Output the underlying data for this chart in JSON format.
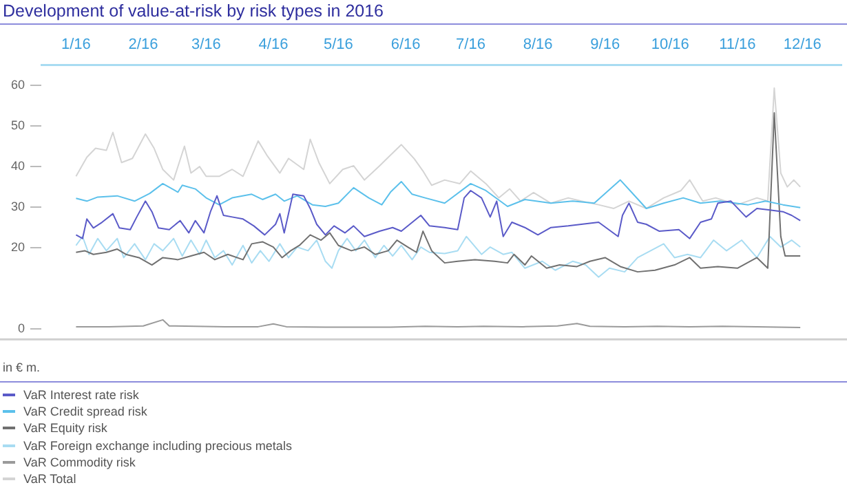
{
  "chart_data": {
    "type": "line",
    "title": "Development of value-at-risk by risk types in 2016",
    "annotations": [
      "in € m."
    ],
    "xlim": [
      "2015-12-16",
      "2016-12-19"
    ],
    "xticks": [
      {
        "value": "2016-01-01",
        "label": "1/16"
      },
      {
        "value": "2016-02-01",
        "label": "2/16"
      },
      {
        "value": "2016-03-01",
        "label": "3/16"
      },
      {
        "value": "2016-04-01",
        "label": "4/16"
      },
      {
        "value": "2016-05-01",
        "label": "5/16"
      },
      {
        "value": "2016-06-01",
        "label": "6/16"
      },
      {
        "value": "2016-07-01",
        "label": "7/16"
      },
      {
        "value": "2016-08-01",
        "label": "8/16"
      },
      {
        "value": "2016-09-01",
        "label": "9/16"
      },
      {
        "value": "2016-10-01",
        "label": "10/16"
      },
      {
        "value": "2016-11-01",
        "label": "11/16"
      },
      {
        "value": "2016-12-01",
        "label": "12/16"
      }
    ],
    "ylim": [
      -2.5,
      65
    ],
    "yticks": [
      0,
      20,
      30,
      40,
      50,
      60
    ],
    "grid": false,
    "legend": "bottom",
    "marker": "none",
    "line_style": "solid",
    "series": [
      {
        "name": "VaR Interest rate risk",
        "color": "#5a5ac8",
        "x": [
          "2016-01-01",
          "2016-01-04",
          "2016-01-06",
          "2016-01-09",
          "2016-01-13",
          "2016-01-18",
          "2016-01-21",
          "2016-01-26",
          "2016-01-29",
          "2016-02-02",
          "2016-02-05",
          "2016-02-08",
          "2016-02-13",
          "2016-02-18",
          "2016-02-22",
          "2016-02-25",
          "2016-02-29",
          "2016-03-03",
          "2016-03-06",
          "2016-03-09",
          "2016-03-13",
          "2016-03-18",
          "2016-03-23",
          "2016-03-28",
          "2016-04-02",
          "2016-04-04",
          "2016-04-06",
          "2016-04-10",
          "2016-04-15",
          "2016-04-18",
          "2016-04-21",
          "2016-04-25",
          "2016-04-29",
          "2016-05-04",
          "2016-05-08",
          "2016-05-13",
          "2016-05-20",
          "2016-05-26",
          "2016-05-30",
          "2016-06-08",
          "2016-06-12",
          "2016-06-19",
          "2016-06-25",
          "2016-06-28",
          "2016-07-01",
          "2016-07-06",
          "2016-07-10",
          "2016-07-13",
          "2016-07-16",
          "2016-07-20",
          "2016-07-26",
          "2016-08-01",
          "2016-08-07",
          "2016-08-15",
          "2016-08-21",
          "2016-08-29",
          "2016-09-07",
          "2016-09-09",
          "2016-09-12",
          "2016-09-16",
          "2016-09-20",
          "2016-09-26",
          "2016-10-05",
          "2016-10-10",
          "2016-10-15",
          "2016-10-20",
          "2016-10-23",
          "2016-10-29",
          "2016-11-05",
          "2016-11-10",
          "2016-11-16",
          "2016-11-22",
          "2016-11-26",
          "2016-11-30"
        ],
        "values": [
          23.2,
          22.3,
          27.1,
          24.9,
          26.3,
          28.4,
          24.9,
          24.5,
          27.6,
          31.5,
          28.9,
          24.9,
          24.5,
          26.7,
          23.7,
          26.7,
          23.7,
          28.9,
          32.8,
          28,
          27.6,
          27.1,
          25.4,
          23.2,
          25.8,
          28.4,
          23.7,
          33.2,
          32.8,
          29.7,
          25.8,
          23.2,
          25.4,
          23.7,
          25.4,
          22.8,
          24.1,
          25,
          24.1,
          28,
          25.4,
          25,
          24.5,
          32.3,
          34.1,
          32.3,
          27.6,
          31.5,
          22.8,
          26.3,
          25,
          23.2,
          25,
          25.4,
          25.8,
          26.3,
          22.8,
          28,
          31,
          26.3,
          25.8,
          24.1,
          24.5,
          22.3,
          26.3,
          27.1,
          31,
          31.5,
          27.6,
          29.7,
          29.3,
          28.9,
          28,
          26.7
        ]
      },
      {
        "name": "VaR Credit spread risk",
        "color": "#5bc0eb",
        "x": [
          "2016-01-01",
          "2016-01-06",
          "2016-01-11",
          "2016-01-20",
          "2016-01-28",
          "2016-02-04",
          "2016-02-10",
          "2016-02-17",
          "2016-02-19",
          "2016-02-25",
          "2016-03-01",
          "2016-03-07",
          "2016-03-13",
          "2016-03-22",
          "2016-03-27",
          "2016-04-02",
          "2016-04-06",
          "2016-04-12",
          "2016-04-19",
          "2016-04-25",
          "2016-05-01",
          "2016-05-08",
          "2016-05-15",
          "2016-05-21",
          "2016-05-25",
          "2016-05-30",
          "2016-06-04",
          "2016-06-10",
          "2016-06-19",
          "2016-07-01",
          "2016-07-08",
          "2016-07-18",
          "2016-07-26",
          "2016-08-07",
          "2016-08-17",
          "2016-08-27",
          "2016-09-08",
          "2016-09-14",
          "2016-09-20",
          "2016-09-28",
          "2016-10-07",
          "2016-10-15",
          "2016-10-24",
          "2016-11-06",
          "2016-11-14",
          "2016-11-22",
          "2016-11-30"
        ],
        "values": [
          32.2,
          31.5,
          32.5,
          32.8,
          31.5,
          33.4,
          35.8,
          33.7,
          35.4,
          34.5,
          32.3,
          30.6,
          32.3,
          33.2,
          31.9,
          33.2,
          31.5,
          32.8,
          30.6,
          30.2,
          31,
          34.8,
          32.3,
          30.6,
          33.7,
          36.3,
          33.2,
          32.3,
          31,
          35.8,
          34.1,
          30.2,
          31.9,
          31,
          31.5,
          31,
          36.7,
          33.2,
          29.7,
          31,
          32.3,
          31,
          31.5,
          30.6,
          31.5,
          30.6,
          29.9
        ]
      },
      {
        "name": "VaR Equity risk",
        "color": "#707070",
        "x": [
          "2016-01-01",
          "2016-01-05",
          "2016-01-09",
          "2016-01-15",
          "2016-01-20",
          "2016-01-24",
          "2016-01-30",
          "2016-02-05",
          "2016-02-10",
          "2016-02-17",
          "2016-02-23",
          "2016-02-29",
          "2016-03-05",
          "2016-03-11",
          "2016-03-18",
          "2016-03-22",
          "2016-03-27",
          "2016-04-01",
          "2016-04-05",
          "2016-04-09",
          "2016-04-13",
          "2016-04-18",
          "2016-04-23",
          "2016-04-27",
          "2016-05-01",
          "2016-05-07",
          "2016-05-13",
          "2016-05-18",
          "2016-05-24",
          "2016-05-28",
          "2016-06-02",
          "2016-06-06",
          "2016-06-09",
          "2016-06-13",
          "2016-06-19",
          "2016-06-25",
          "2016-07-03",
          "2016-07-12",
          "2016-07-18",
          "2016-07-21",
          "2016-07-26",
          "2016-07-29",
          "2016-08-05",
          "2016-08-11",
          "2016-08-19",
          "2016-08-25",
          "2016-09-01",
          "2016-09-08",
          "2016-09-16",
          "2016-09-24",
          "2016-10-03",
          "2016-10-10",
          "2016-10-15",
          "2016-10-23",
          "2016-11-01",
          "2016-11-10",
          "2016-11-15",
          "2016-11-18",
          "2016-11-21",
          "2016-11-23",
          "2016-11-27",
          "2016-11-30"
        ],
        "values": [
          18.9,
          19.3,
          18.4,
          18.9,
          19.7,
          18.4,
          17.6,
          15.8,
          17.6,
          17.1,
          18,
          18.9,
          17.1,
          18.4,
          17.1,
          21,
          21.5,
          20.2,
          17.6,
          19.3,
          20.6,
          23.2,
          21.9,
          23.7,
          20.6,
          19.3,
          20.2,
          18.4,
          19.3,
          21.9,
          20.2,
          18.9,
          24.1,
          19.3,
          16.3,
          16.7,
          17.1,
          16.7,
          16.3,
          18.4,
          15.8,
          18,
          15,
          15.8,
          15.4,
          16.7,
          17.6,
          15.4,
          14.1,
          14.5,
          15.8,
          17.6,
          15,
          15.4,
          15,
          17.6,
          15,
          53.2,
          22.8,
          18,
          18,
          18
        ]
      },
      {
        "name": "VaR Foreign exchange including precious metals",
        "color": "#a8dcf2",
        "x": [
          "2016-01-01",
          "2016-01-04",
          "2016-01-07",
          "2016-01-11",
          "2016-01-15",
          "2016-01-20",
          "2016-01-23",
          "2016-01-28",
          "2016-02-02",
          "2016-02-06",
          "2016-02-10",
          "2016-02-15",
          "2016-02-19",
          "2016-02-23",
          "2016-02-27",
          "2016-03-01",
          "2016-03-05",
          "2016-03-09",
          "2016-03-13",
          "2016-03-18",
          "2016-03-22",
          "2016-03-26",
          "2016-03-30",
          "2016-04-04",
          "2016-04-08",
          "2016-04-12",
          "2016-04-17",
          "2016-04-21",
          "2016-04-25",
          "2016-04-28",
          "2016-05-01",
          "2016-05-05",
          "2016-05-09",
          "2016-05-13",
          "2016-05-18",
          "2016-05-22",
          "2016-05-26",
          "2016-05-30",
          "2016-06-04",
          "2016-06-08",
          "2016-06-12",
          "2016-06-19",
          "2016-06-25",
          "2016-06-29",
          "2016-07-06",
          "2016-07-10",
          "2016-07-16",
          "2016-07-20",
          "2016-07-26",
          "2016-08-03",
          "2016-08-09",
          "2016-08-17",
          "2016-08-23",
          "2016-08-29",
          "2016-09-03",
          "2016-09-10",
          "2016-09-16",
          "2016-09-22",
          "2016-09-28",
          "2016-10-03",
          "2016-10-09",
          "2016-10-15",
          "2016-10-21",
          "2016-10-27",
          "2016-11-03",
          "2016-11-10",
          "2016-11-16",
          "2016-11-21",
          "2016-11-26",
          "2016-11-30"
        ],
        "values": [
          20.6,
          22.8,
          18.4,
          22.3,
          19.3,
          22.3,
          17.6,
          21,
          17.1,
          21,
          19.3,
          22.3,
          18,
          21.9,
          18.4,
          21.9,
          17.6,
          19.3,
          15.8,
          20.6,
          16.3,
          19.3,
          16.7,
          21,
          17.6,
          20.2,
          19.3,
          21.9,
          16.7,
          15,
          19.3,
          22.3,
          19.3,
          21.9,
          17.6,
          20.6,
          18,
          20.6,
          17.1,
          20.2,
          18.9,
          18.6,
          19.3,
          22.8,
          18.4,
          20.2,
          18.4,
          18.9,
          15,
          16.7,
          14.5,
          16.7,
          15.8,
          12.8,
          15,
          14.1,
          17.6,
          19.3,
          21,
          17.6,
          18.4,
          17.6,
          21.9,
          19.3,
          21.9,
          17.6,
          22.8,
          20.2,
          21.9,
          20.2
        ]
      },
      {
        "name": "VaR Commodity risk",
        "color": "#9a9a9a",
        "x": [
          "2016-01-01",
          "2016-01-16",
          "2016-02-01",
          "2016-02-10",
          "2016-02-13",
          "2016-02-25",
          "2016-03-10",
          "2016-03-25",
          "2016-04-01",
          "2016-04-07",
          "2016-04-25",
          "2016-05-10",
          "2016-05-25",
          "2016-06-10",
          "2016-06-25",
          "2016-07-07",
          "2016-07-25",
          "2016-08-10",
          "2016-08-19",
          "2016-08-25",
          "2016-09-10",
          "2016-09-25",
          "2016-10-10",
          "2016-10-25",
          "2016-11-10",
          "2016-11-30"
        ],
        "values": [
          0.6,
          0.6,
          0.8,
          2.3,
          0.8,
          0.7,
          0.6,
          0.6,
          1.3,
          0.6,
          0.5,
          0.5,
          0.5,
          0.7,
          0.6,
          0.7,
          0.6,
          0.8,
          1.4,
          0.7,
          0.6,
          0.7,
          0.6,
          0.7,
          0.6,
          0.4
        ]
      },
      {
        "name": "VaR Total",
        "color": "#d4d4d4",
        "x": [
          "2016-01-01",
          "2016-01-06",
          "2016-01-10",
          "2016-01-15",
          "2016-01-18",
          "2016-01-22",
          "2016-01-27",
          "2016-02-02",
          "2016-02-06",
          "2016-02-10",
          "2016-02-15",
          "2016-02-20",
          "2016-02-23",
          "2016-02-27",
          "2016-03-01",
          "2016-03-07",
          "2016-03-13",
          "2016-03-18",
          "2016-03-25",
          "2016-03-29",
          "2016-04-04",
          "2016-04-08",
          "2016-04-15",
          "2016-04-18",
          "2016-04-22",
          "2016-04-27",
          "2016-05-03",
          "2016-05-08",
          "2016-05-13",
          "2016-05-20",
          "2016-05-25",
          "2016-05-30",
          "2016-06-05",
          "2016-06-09",
          "2016-06-13",
          "2016-06-19",
          "2016-06-26",
          "2016-07-01",
          "2016-07-08",
          "2016-07-14",
          "2016-07-19",
          "2016-07-24",
          "2016-07-30",
          "2016-08-07",
          "2016-08-15",
          "2016-08-21",
          "2016-08-29",
          "2016-09-05",
          "2016-09-12",
          "2016-09-20",
          "2016-09-28",
          "2016-10-06",
          "2016-10-10",
          "2016-10-16",
          "2016-10-22",
          "2016-11-01",
          "2016-11-10",
          "2016-11-15",
          "2016-11-18",
          "2016-11-21",
          "2016-11-24",
          "2016-11-27",
          "2016-11-30"
        ],
        "values": [
          37.6,
          42.3,
          44.5,
          44,
          48.4,
          41,
          42,
          48,
          44.5,
          39.3,
          36.7,
          45,
          38.4,
          40,
          37.6,
          37.6,
          39.3,
          37.6,
          46.3,
          42.8,
          38.4,
          42,
          39.3,
          46.7,
          41,
          35.8,
          39.3,
          40.2,
          36.7,
          40.2,
          42.8,
          45.4,
          41.9,
          38.9,
          35.4,
          36.7,
          35.8,
          38.9,
          35.8,
          32.3,
          34.5,
          31.5,
          33.6,
          31,
          32.3,
          31.5,
          30.6,
          29.7,
          31.5,
          29.7,
          32.3,
          34.1,
          36.7,
          31.5,
          32.3,
          30.6,
          32.3,
          31.5,
          59.3,
          38.4,
          35,
          36.7,
          35
        ]
      }
    ]
  }
}
